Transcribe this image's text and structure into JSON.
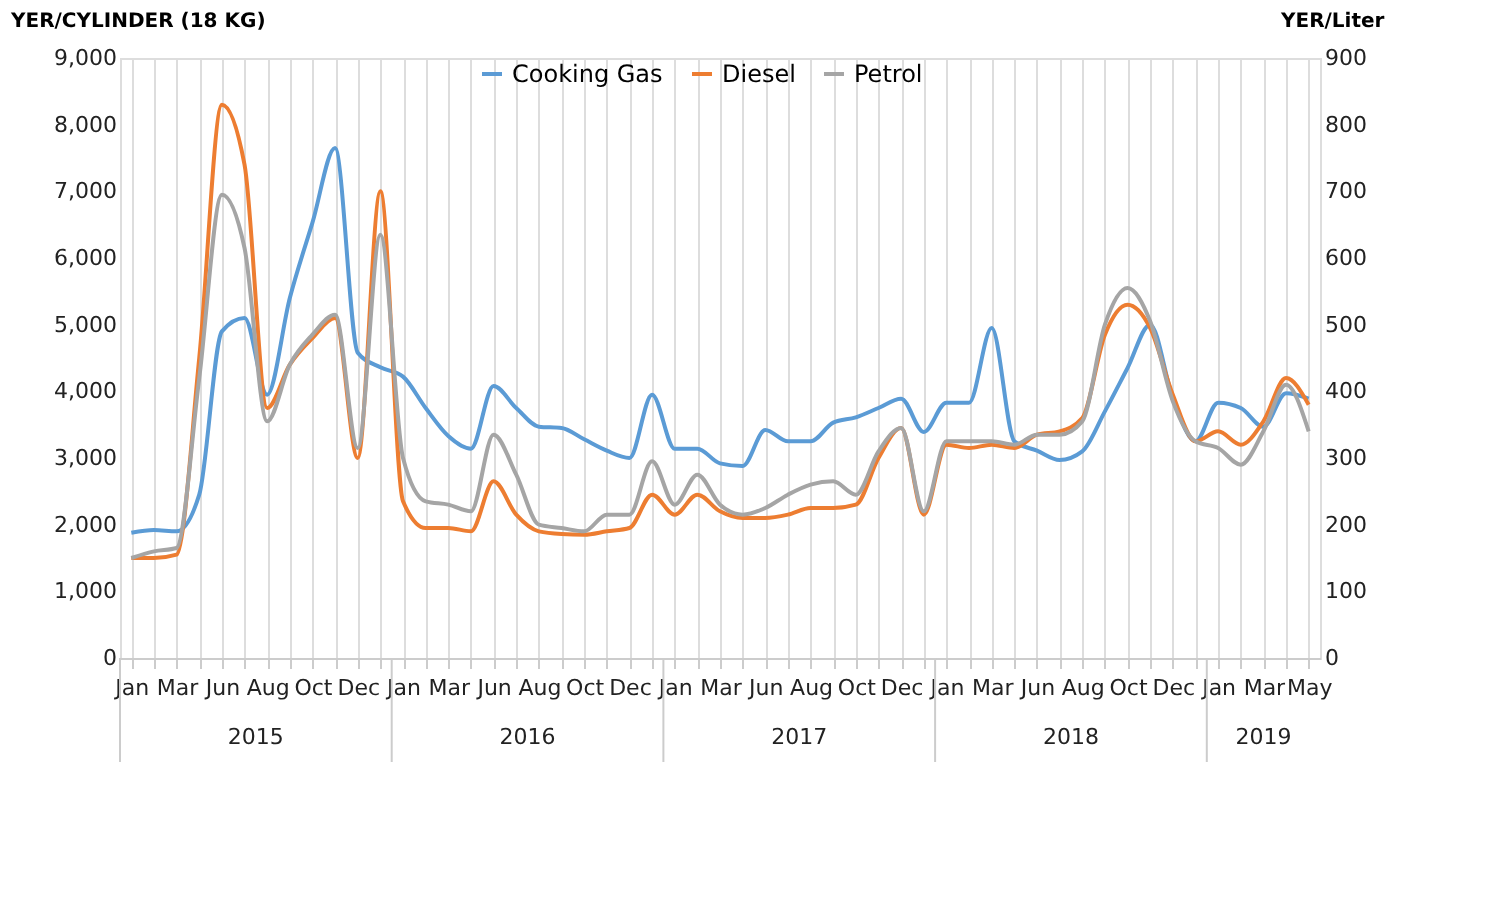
{
  "chart_data": {
    "type": "line",
    "ylabel": "YER/CYLINDER (18 KG)",
    "y2label": "YER/Liter",
    "categories": [
      "Jan",
      null,
      "Mar",
      null,
      "Jun",
      null,
      "Aug",
      null,
      "Oct",
      null,
      "Dec",
      null,
      "Jan",
      null,
      "Mar",
      null,
      "Jun",
      null,
      "Aug",
      null,
      "Oct",
      null,
      "Dec",
      null,
      "Jan",
      null,
      "Mar",
      null,
      "Jun",
      null,
      "Aug",
      null,
      "Oct",
      null,
      "Dec",
      null,
      "Jan",
      null,
      "Mar",
      null,
      "Jun",
      null,
      "Aug",
      null,
      "Oct",
      null,
      "Dec",
      null,
      "Jan",
      null,
      "Mar",
      null,
      "May"
    ],
    "annotations": [
      "2015",
      "2016",
      "2017",
      "2018",
      "2019"
    ],
    "series": [
      {
        "name": "Cooking Gas",
        "color": "#5b9bd5",
        "values": [
          1880,
          1920,
          1900,
          2450,
          4900,
          5100,
          3950,
          5400,
          6530,
          7650,
          4580,
          4360,
          4220,
          3750,
          3330,
          3140,
          4080,
          3750,
          3470,
          3450,
          3280,
          3110,
          3000,
          3950,
          3140,
          3140,
          2920,
          2880,
          3420,
          3250,
          3250,
          3530,
          3610,
          3750,
          3890,
          3390,
          3830,
          3830,
          4950,
          3250,
          3110,
          2970,
          3100,
          3700,
          4350,
          5000,
          3900,
          3250,
          3830,
          3750,
          3470,
          3970,
          3890
        ]
      },
      {
        "name": "Diesel",
        "color": "#ed7d31",
        "axis": "y2",
        "values": [
          150,
          150,
          155,
          450,
          830,
          740,
          375,
          440,
          480,
          510,
          300,
          700,
          235,
          195,
          195,
          190,
          265,
          215,
          190,
          186,
          185,
          190,
          195,
          245,
          215,
          245,
          220,
          210,
          210,
          215,
          225,
          225,
          230,
          300,
          345,
          215,
          320,
          315,
          320,
          315,
          335,
          340,
          360,
          485,
          530,
          495,
          395,
          325,
          340,
          320,
          355,
          420,
          380
        ]
      },
      {
        "name": "Petrol",
        "color": "#a5a5a5",
        "axis": "y2",
        "values": [
          150,
          160,
          165,
          420,
          695,
          615,
          355,
          440,
          485,
          515,
          315,
          635,
          300,
          235,
          230,
          220,
          335,
          275,
          200,
          195,
          190,
          215,
          215,
          295,
          230,
          275,
          230,
          215,
          225,
          245,
          260,
          265,
          245,
          310,
          345,
          220,
          325,
          325,
          325,
          320,
          335,
          335,
          355,
          500,
          555,
          505,
          385,
          325,
          315,
          290,
          340,
          410,
          340
        ]
      }
    ],
    "ylim": [
      0,
      9000
    ],
    "yticks": [
      {
        "value": 0,
        "label": "0"
      },
      {
        "value": 1000,
        "label": "1,000"
      },
      {
        "value": 2000,
        "label": "2,000"
      },
      {
        "value": 3000,
        "label": "3,000"
      },
      {
        "value": 4000,
        "label": "4,000"
      },
      {
        "value": 5000,
        "label": "5,000"
      },
      {
        "value": 6000,
        "label": "6,000"
      },
      {
        "value": 7000,
        "label": "7,000"
      },
      {
        "value": 8000,
        "label": "8,000"
      },
      {
        "value": 9000,
        "label": "9,000"
      }
    ],
    "y2lim": [
      0,
      900
    ],
    "y2ticks": [
      0,
      100,
      200,
      300,
      400,
      500,
      600,
      700,
      800,
      900
    ],
    "grid": "x",
    "legend": "top",
    "marker": "none",
    "line_style": "solid"
  }
}
